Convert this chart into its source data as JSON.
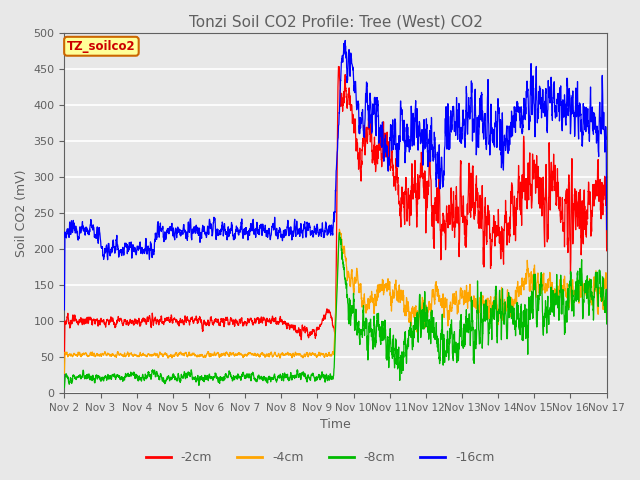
{
  "title": "Tonzi Soil CO2 Profile: Tree (West) CO2",
  "ylabel": "Soil CO2 (mV)",
  "xlabel": "Time",
  "legend_label": "TZ_soilco2",
  "series_labels": [
    "-2cm",
    "-4cm",
    "-8cm",
    "-16cm"
  ],
  "series_colors": [
    "#ff0000",
    "#ffa500",
    "#00bb00",
    "#0000ff"
  ],
  "ylim": [
    0,
    500
  ],
  "fig_facecolor": "#e8e8e8",
  "plot_facecolor": "#e8e8e8",
  "title_color": "#606060",
  "axis_color": "#606060",
  "grid_color": "#ffffff",
  "x_tick_labels": [
    "Nov 2",
    "Nov 3",
    "Nov 4",
    "Nov 5",
    "Nov 6",
    "Nov 7",
    "Nov 8",
    "Nov 9",
    "Nov 10",
    "Nov 11",
    "Nov 12",
    "Nov 13",
    "Nov 14",
    "Nov 15",
    "Nov 16",
    "Nov 17"
  ]
}
